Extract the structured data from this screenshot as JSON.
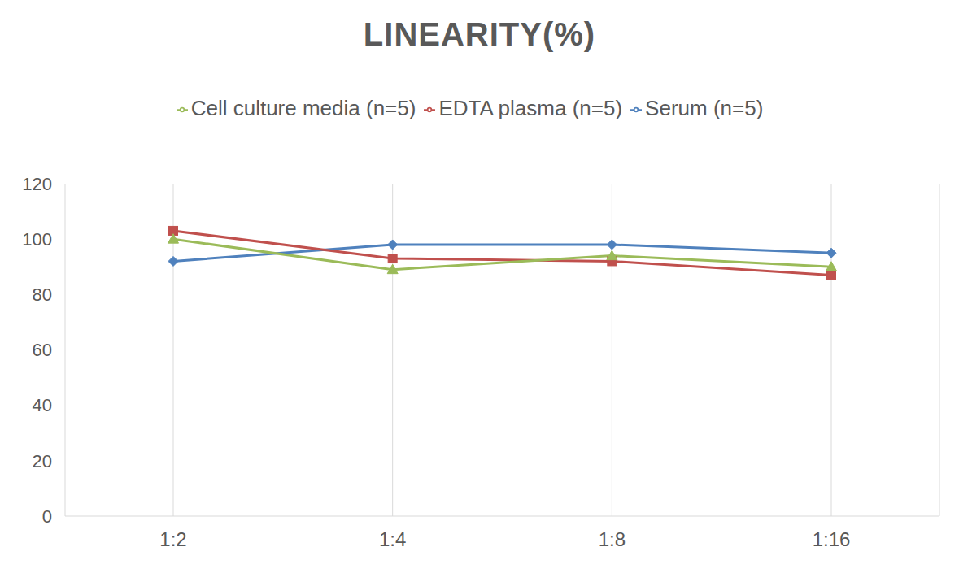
{
  "chart_data": {
    "type": "line",
    "title": "LINEARITY(%)",
    "categories": [
      "1:2",
      "1:4",
      "1:8",
      "1:16"
    ],
    "series": [
      {
        "name": "Serum (n=5)",
        "color": "#4f81bd",
        "marker": "diamond",
        "values": [
          92,
          98,
          98,
          95
        ]
      },
      {
        "name": "EDTA plasma (n=5)",
        "color": "#c0504d",
        "marker": "square",
        "values": [
          103,
          93,
          92,
          87
        ]
      },
      {
        "name": "Cell culture media (n=5)",
        "color": "#9bbb59",
        "marker": "triangle",
        "values": [
          100,
          89,
          94,
          90
        ]
      }
    ],
    "ylim": [
      0,
      120
    ],
    "yticks": [
      0,
      20,
      40,
      60,
      80,
      100,
      120
    ],
    "grid": true,
    "legend": "top"
  }
}
